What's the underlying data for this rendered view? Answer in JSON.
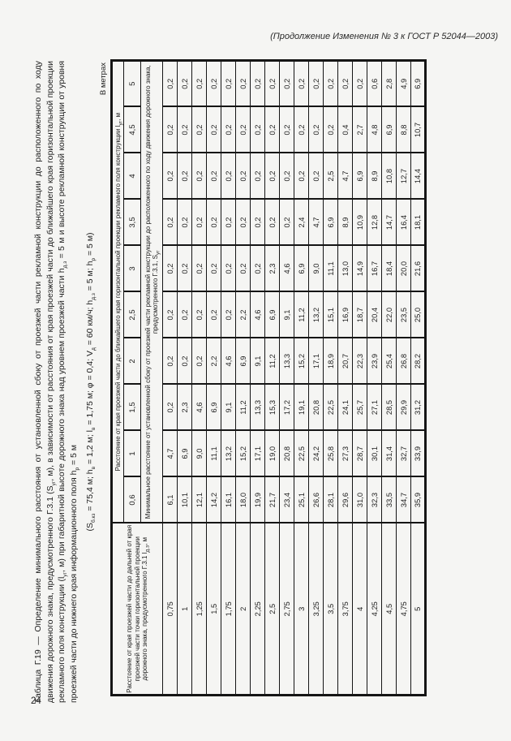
{
  "page": {
    "header_note": "(Продолжение Изменения № 3 к ГОСТ Р 52044—2003)",
    "page_number": "24",
    "units_label": "В метрах"
  },
  "table": {
    "title": "Таблица Г.19 — Определение минимального расстояния от установленной сбоку от проезжей части рекламной конструкции до расположенного по ходу движения дорожного знака, предусмотренного Г.3.1 (S_{уг}, м), в зависимости от расстояния от края проезжей части до ближайшего края горизонтальной проекции рекламного поля конструкции (l_{уг}, м) при габаритной высоте дорожного знака над уровнем проезжей части h_{д.з} = 5 м и высоте рекламной конструкции от уровня проезжей части до нижнего края информационного поля h_{р} = 5 м",
    "parameters_line": "(S_{б.кз} = 75,4 м; h_{в} = 1,2 м; l_{в} = 1,75 м; φ = 0,4; V_{д} = 60 км/ч; h_{д.з} = 5 м; h_{р} = 5 м)",
    "stub_header": "Расстояние от края проезжей части до дальней от края проезжей части точки горизонтальной проекции дорожного знака, предусмотренного Г.3.1 l_{д.з}, м",
    "col_group_header": "Расстояние от края проезжей части до ближайшего края горизонтальной проекции рекламного поля конструкции l_{уг}, м",
    "col_headers": [
      "0,6",
      "1",
      "1,5",
      "2",
      "2,5",
      "3",
      "3,5",
      "4",
      "4,5",
      "5"
    ],
    "body_header": "Минимальное расстояние от установленной сбоку от проезжей части рекламной конструкции до расположенного по ходу движения дорожного знака, предусмотренного Г.3.1, S_{уг}",
    "rows": [
      {
        "label": "0,75",
        "values": [
          "6,1",
          "4,7",
          "0,2",
          "0,2",
          "0,2",
          "0,2",
          "0,2",
          "0,2",
          "0,2",
          "0,2"
        ]
      },
      {
        "label": "1",
        "values": [
          "10,1",
          "6,9",
          "2,3",
          "0,2",
          "0,2",
          "0,2",
          "0,2",
          "0,2",
          "0,2",
          "0,2"
        ]
      },
      {
        "label": "1,25",
        "values": [
          "12,1",
          "9,0",
          "4,6",
          "0,2",
          "0,2",
          "0,2",
          "0,2",
          "0,2",
          "0,2",
          "0,2"
        ]
      },
      {
        "label": "1,5",
        "values": [
          "14,2",
          "11,1",
          "6,9",
          "2,2",
          "0,2",
          "0,2",
          "0,2",
          "0,2",
          "0,2",
          "0,2"
        ]
      },
      {
        "label": "1,75",
        "values": [
          "16,1",
          "13,2",
          "9,1",
          "4,6",
          "0,2",
          "0,2",
          "0,2",
          "0,2",
          "0,2",
          "0,2"
        ]
      },
      {
        "label": "2",
        "values": [
          "18,0",
          "15,2",
          "11,2",
          "6,9",
          "2,2",
          "0,2",
          "0,2",
          "0,2",
          "0,2",
          "0,2"
        ]
      },
      {
        "label": "2,25",
        "values": [
          "19,9",
          "17,1",
          "13,3",
          "9,1",
          "4,6",
          "0,2",
          "0,2",
          "0,2",
          "0,2",
          "0,2"
        ]
      },
      {
        "label": "2,5",
        "values": [
          "21,7",
          "19,0",
          "15,3",
          "11,2",
          "6,9",
          "2,3",
          "0,2",
          "0,2",
          "0,2",
          "0,2"
        ]
      },
      {
        "label": "2,75",
        "values": [
          "23,4",
          "20,8",
          "17,2",
          "13,3",
          "9,1",
          "4,6",
          "0,2",
          "0,2",
          "0,2",
          "0,2"
        ]
      },
      {
        "label": "3",
        "values": [
          "25,1",
          "22,5",
          "19,1",
          "15,2",
          "11,2",
          "6,9",
          "2,4",
          "0,2",
          "0,2",
          "0,2"
        ]
      },
      {
        "label": "3,25",
        "values": [
          "26,6",
          "24,2",
          "20,8",
          "17,1",
          "13,2",
          "9,0",
          "4,7",
          "0,2",
          "0,2",
          "0,2"
        ]
      },
      {
        "label": "3,5",
        "values": [
          "28,1",
          "25,8",
          "22,5",
          "18,9",
          "15,1",
          "11,1",
          "6,9",
          "2,5",
          "0,2",
          "0,2"
        ]
      },
      {
        "label": "3,75",
        "values": [
          "29,6",
          "27,3",
          "24,1",
          "20,7",
          "16,9",
          "13,0",
          "8,9",
          "4,7",
          "0,4",
          "0,2"
        ]
      },
      {
        "label": "4",
        "values": [
          "31,0",
          "28,7",
          "25,7",
          "22,3",
          "18,7",
          "14,9",
          "10,9",
          "6,9",
          "2,7",
          "0,2"
        ]
      },
      {
        "label": "4,25",
        "values": [
          "32,3",
          "30,1",
          "27,1",
          "23,9",
          "20,4",
          "16,7",
          "12,8",
          "8,9",
          "4,8",
          "0,6"
        ]
      },
      {
        "label": "4,5",
        "values": [
          "33,5",
          "31,4",
          "28,5",
          "25,4",
          "22,0",
          "18,4",
          "14,7",
          "10,8",
          "6,9",
          "2,8"
        ]
      },
      {
        "label": "4,75",
        "values": [
          "34,7",
          "32,7",
          "29,9",
          "26,8",
          "23,5",
          "20,0",
          "16,4",
          "12,7",
          "8,8",
          "4,9"
        ]
      },
      {
        "label": "5",
        "values": [
          "35,9",
          "33,9",
          "31,2",
          "28,2",
          "25,0",
          "21,6",
          "18,1",
          "14,4",
          "10,7",
          "6,9"
        ]
      }
    ]
  }
}
